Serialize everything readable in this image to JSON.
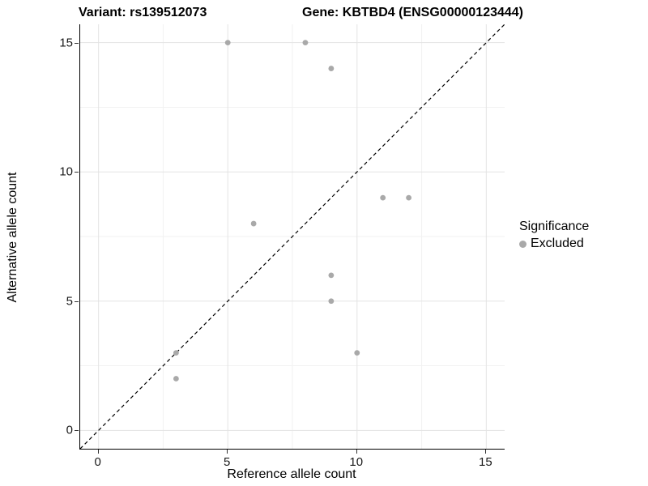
{
  "header": {
    "variant_title": "Variant: rs139512073",
    "gene_title": "Gene: KBTBD4 (ENSG00000123444)"
  },
  "chart_data": {
    "type": "scatter",
    "title": "Variant: rs139512073  /  Gene: KBTBD4 (ENSG00000123444)",
    "xlabel": "Reference allele count",
    "ylabel": "Alternative allele count",
    "xlim": [
      -0.71,
      15.71
    ],
    "ylim": [
      -0.71,
      15.71
    ],
    "x_ticks": [
      0,
      5,
      10,
      15
    ],
    "y_ticks": [
      0,
      5,
      10,
      15
    ],
    "x_minor_gridlines": [
      2.5,
      7.5,
      12.5
    ],
    "y_minor_gridlines": [
      2.5,
      7.5,
      12.5
    ],
    "grid": "on",
    "series": [
      {
        "name": "Excluded",
        "color": "#a9a9a9",
        "points": [
          {
            "x": 3,
            "y": 2
          },
          {
            "x": 3,
            "y": 3
          },
          {
            "x": 5,
            "y": 15
          },
          {
            "x": 6,
            "y": 8
          },
          {
            "x": 8,
            "y": 15
          },
          {
            "x": 9,
            "y": 5
          },
          {
            "x": 9,
            "y": 6
          },
          {
            "x": 9,
            "y": 14
          },
          {
            "x": 10,
            "y": 3
          },
          {
            "x": 11,
            "y": 9
          },
          {
            "x": 12,
            "y": 9
          }
        ]
      }
    ],
    "reference_line": {
      "kind": "identity-diagonal",
      "style": "dashed",
      "color": "#000000"
    },
    "legend": {
      "title": "Significance",
      "position": "right",
      "entries": [
        {
          "label": "Excluded",
          "color": "#a9a9a9"
        }
      ]
    },
    "colors": {
      "major_gridline": "#e3e3e3",
      "minor_gridline": "#f2f2f2",
      "axis_line": "#000000",
      "point": "#a9a9a9"
    }
  }
}
